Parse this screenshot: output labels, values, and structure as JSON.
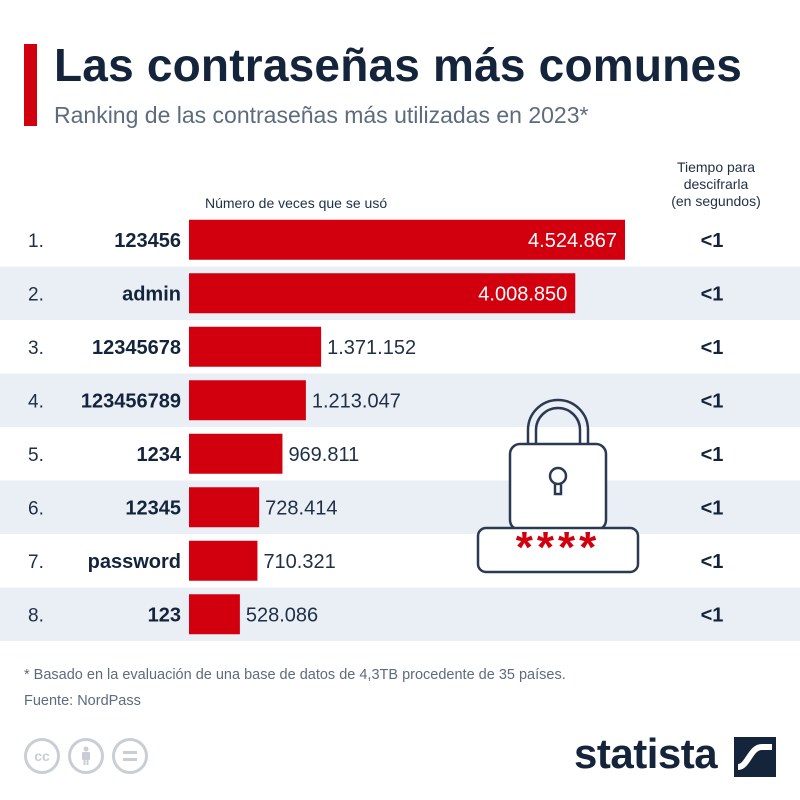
{
  "header": {
    "title": "Las contraseñas más comunes",
    "subtitle": "Ranking de las contraseñas más utilizadas en 2023*"
  },
  "columns": {
    "count_label": "Número de veces que se usó",
    "time_label_lines": [
      "Tiempo para",
      "descifrarla",
      "(en segundos)"
    ]
  },
  "chart_data": {
    "type": "bar",
    "orientation": "horizontal",
    "categories": [
      "123456",
      "admin",
      "12345678",
      "123456789",
      "1234",
      "12345",
      "password",
      "123"
    ],
    "ranks": [
      "1.",
      "2.",
      "3.",
      "4.",
      "5.",
      "6.",
      "7.",
      "8."
    ],
    "values": [
      4524867,
      4008850,
      1371152,
      1213047,
      969811,
      728414,
      710321,
      528086
    ],
    "value_labels": [
      "4.524.867",
      "4.008.850",
      "1.371.152",
      "1.213.047",
      "969.811",
      "728.414",
      "710.321",
      "528.086"
    ],
    "crack_time_labels": [
      "<1",
      "<1",
      "<1",
      "<1",
      "<1",
      "<1",
      "<1",
      "<1"
    ],
    "colors": {
      "bar": "#d2000f",
      "alt_row": "#eaeef5"
    },
    "grid": false
  },
  "illustration": {
    "icon": "padlock-icon",
    "masked_password": "****"
  },
  "footer": {
    "note": "* Basado en la evaluación de una base de datos de 4,3TB procedente de 35 países.",
    "source": "Fuente: NordPass",
    "license_icons": [
      "cc",
      "by",
      "nd"
    ],
    "brand": "statista"
  },
  "colors": {
    "accent": "#d2000f",
    "title": "#13243b",
    "muted": "#5d6b7e"
  }
}
